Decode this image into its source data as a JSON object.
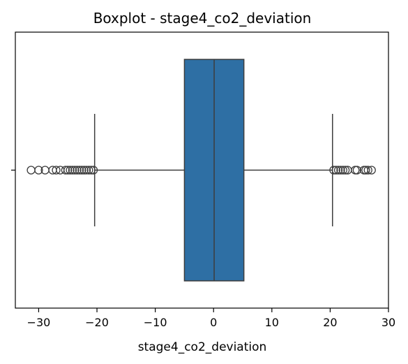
{
  "chart_data": {
    "type": "boxplot",
    "title": "Boxplot - stage4_co2_deviation",
    "xlabel": "stage4_co2_deviation",
    "ylabel": "",
    "xlim": [
      -34,
      30
    ],
    "xticks": [
      -30,
      -20,
      -10,
      0,
      10,
      20,
      30
    ],
    "xtick_labels": [
      "−30",
      "−20",
      "−10",
      "0",
      "10",
      "20",
      "30"
    ],
    "orientation": "horizontal",
    "grid": false,
    "box": {
      "whisker_low": -20.4,
      "q1": -5.0,
      "median": 0.1,
      "q3": 5.2,
      "whisker_high": 20.4,
      "fill_color": "#2e6fa4",
      "edge_color": "#3d3d3d"
    },
    "outliers": [
      -31.3,
      -30.0,
      -28.9,
      -27.6,
      -27.0,
      -26.3,
      -25.4,
      -25.0,
      -24.6,
      -24.2,
      -23.8,
      -23.4,
      -23.0,
      -22.6,
      -22.2,
      -21.8,
      -21.4,
      -21.0,
      -20.6,
      20.6,
      21.0,
      21.4,
      21.8,
      22.2,
      22.6,
      23.0,
      24.3,
      24.6,
      25.8,
      26.1,
      26.5,
      27.1
    ]
  }
}
